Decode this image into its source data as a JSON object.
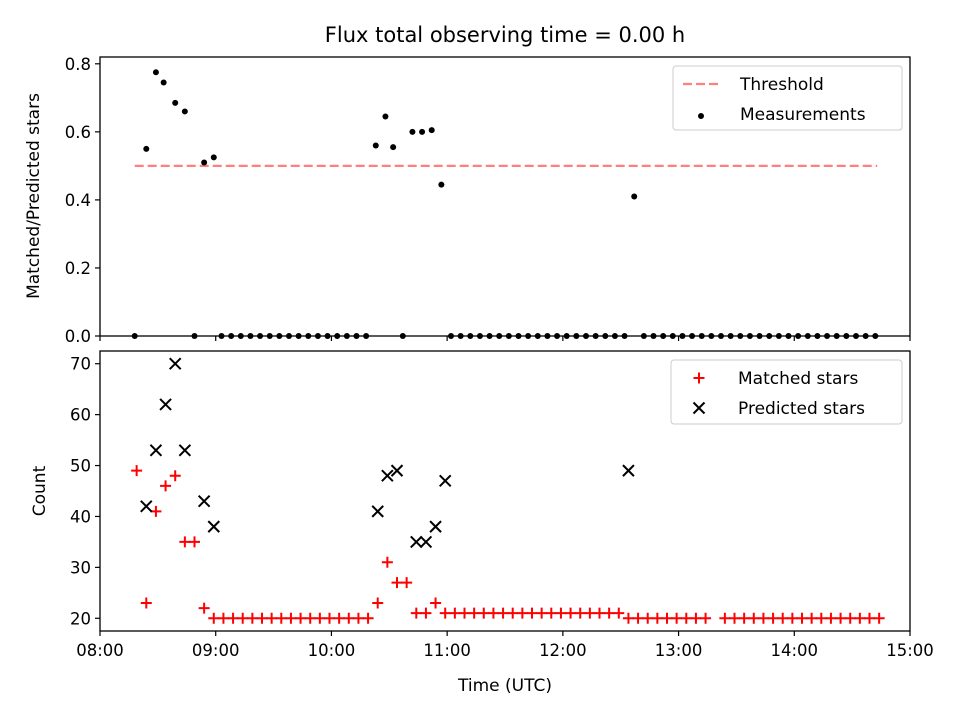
{
  "figure": {
    "title": "Flux total observing time = 0.00 h",
    "xlabel": "Time (UTC)"
  },
  "chart_data": [
    {
      "type": "scatter",
      "ylabel": "Matched/Predicted stars",
      "ylim": [
        0,
        0.82
      ],
      "yticks": [
        "0.0",
        "0.2",
        "0.4",
        "0.6",
        "0.8"
      ],
      "xlim": [
        "08:00",
        "15:00"
      ],
      "legend_position": "top-right",
      "series": [
        {
          "name": "Threshold",
          "kind": "dashed-line",
          "color": "#ff7f7f",
          "x": [
            "08:18",
            "14:43"
          ],
          "y": [
            0.5,
            0.5
          ]
        },
        {
          "name": "Measurements",
          "kind": "dot",
          "color": "#000000",
          "x": [
            "08:18",
            "08:24",
            "08:29",
            "08:33",
            "08:39",
            "08:44",
            "08:49",
            "08:54",
            "08:59",
            "09:03",
            "09:08",
            "09:13",
            "09:18",
            "09:23",
            "09:28",
            "09:33",
            "09:38",
            "09:43",
            "09:48",
            "09:53",
            "09:58",
            "10:03",
            "10:08",
            "10:13",
            "10:18",
            "10:23",
            "10:28",
            "10:32",
            "10:37",
            "10:42",
            "10:47",
            "10:52",
            "10:57",
            "11:02",
            "11:07",
            "11:12",
            "11:17",
            "11:22",
            "11:27",
            "11:32",
            "11:37",
            "11:42",
            "11:47",
            "11:52",
            "11:57",
            "12:02",
            "12:07",
            "12:12",
            "12:17",
            "12:22",
            "12:27",
            "12:32",
            "12:37",
            "12:42",
            "12:47",
            "12:52",
            "12:57",
            "13:02",
            "13:07",
            "13:12",
            "13:17",
            "13:22",
            "13:27",
            "13:32",
            "13:37",
            "13:42",
            "13:47",
            "13:52",
            "13:57",
            "14:02",
            "14:07",
            "14:12",
            "14:17",
            "14:22",
            "14:27",
            "14:32",
            "14:37",
            "14:42"
          ],
          "y": [
            0.0,
            0.55,
            0.775,
            0.745,
            0.685,
            0.66,
            0.0,
            0.51,
            0.525,
            0.0,
            0.0,
            0.0,
            0.0,
            0.0,
            0.0,
            0.0,
            0.0,
            0.0,
            0.0,
            0.0,
            0.0,
            0.0,
            0.0,
            0.0,
            0.0,
            0.56,
            0.645,
            0.555,
            0.0,
            0.6,
            0.6,
            0.605,
            0.445,
            0.0,
            0.0,
            0.0,
            0.0,
            0.0,
            0.0,
            0.0,
            0.0,
            0.0,
            0.0,
            0.0,
            0.0,
            0.0,
            0.0,
            0.0,
            0.0,
            0.0,
            0.0,
            0.0,
            0.41,
            0.0,
            0.0,
            0.0,
            0.0,
            0.0,
            0.0,
            0.0,
            0.0,
            0.0,
            0.0,
            0.0,
            0.0,
            0.0,
            0.0,
            0.0,
            0.0,
            0.0,
            0.0,
            0.0,
            0.0,
            0.0,
            0.0,
            0.0,
            0.0,
            0.0
          ]
        }
      ]
    },
    {
      "type": "scatter",
      "ylabel": "Count",
      "ylim": [
        17.5,
        72.5
      ],
      "yticks": [
        "20",
        "30",
        "40",
        "50",
        "60",
        "70"
      ],
      "xlim": [
        "08:00",
        "15:00"
      ],
      "xticks": [
        "08:00",
        "09:00",
        "10:00",
        "11:00",
        "12:00",
        "13:00",
        "14:00",
        "15:00"
      ],
      "legend_position": "top-right",
      "series": [
        {
          "name": "Matched stars",
          "marker": "+",
          "color": "#ff0000",
          "x": [
            "08:19",
            "08:24",
            "08:29",
            "08:34",
            "08:39",
            "08:44",
            "08:49",
            "08:54",
            "08:59",
            "09:04",
            "09:09",
            "09:14",
            "09:19",
            "09:24",
            "09:29",
            "09:34",
            "09:39",
            "09:44",
            "09:49",
            "09:54",
            "09:59",
            "10:04",
            "10:09",
            "10:14",
            "10:19",
            "10:24",
            "10:29",
            "10:34",
            "10:39",
            "10:44",
            "10:49",
            "10:54",
            "10:59",
            "11:04",
            "11:09",
            "11:14",
            "11:19",
            "11:24",
            "11:29",
            "11:34",
            "11:39",
            "11:44",
            "11:49",
            "11:54",
            "11:59",
            "12:04",
            "12:09",
            "12:14",
            "12:19",
            "12:24",
            "12:29",
            "12:34",
            "12:39",
            "12:44",
            "12:49",
            "12:54",
            "12:59",
            "13:04",
            "13:09",
            "13:14",
            "13:24",
            "13:29",
            "13:34",
            "13:39",
            "13:44",
            "13:49",
            "13:54",
            "13:59",
            "14:04",
            "14:09",
            "14:14",
            "14:19",
            "14:24",
            "14:29",
            "14:34",
            "14:39",
            "14:44"
          ],
          "y": [
            49,
            23,
            41,
            46,
            48,
            35,
            35,
            22,
            20,
            20,
            20,
            20,
            20,
            20,
            20,
            20,
            20,
            20,
            20,
            20,
            20,
            20,
            20,
            20,
            20,
            23,
            31,
            27,
            27,
            21,
            21,
            23,
            21,
            21,
            21,
            21,
            21,
            21,
            21,
            21,
            21,
            21,
            21,
            21,
            21,
            21,
            21,
            21,
            21,
            21,
            21,
            20,
            20,
            20,
            20,
            20,
            20,
            20,
            20,
            20,
            20,
            20,
            20,
            20,
            20,
            20,
            20,
            20,
            20,
            20,
            20,
            20,
            20,
            20,
            20,
            20,
            20
          ]
        },
        {
          "name": "Predicted stars",
          "marker": "x",
          "color": "#000000",
          "x": [
            "08:24",
            "08:29",
            "08:34",
            "08:39",
            "08:44",
            "08:54",
            "08:59",
            "10:24",
            "10:29",
            "10:34",
            "10:44",
            "10:49",
            "10:54",
            "10:59",
            "12:34"
          ],
          "y": [
            42,
            53,
            62,
            70,
            53,
            43,
            38,
            41,
            48,
            49,
            35,
            35,
            38,
            47,
            49
          ]
        }
      ]
    }
  ]
}
